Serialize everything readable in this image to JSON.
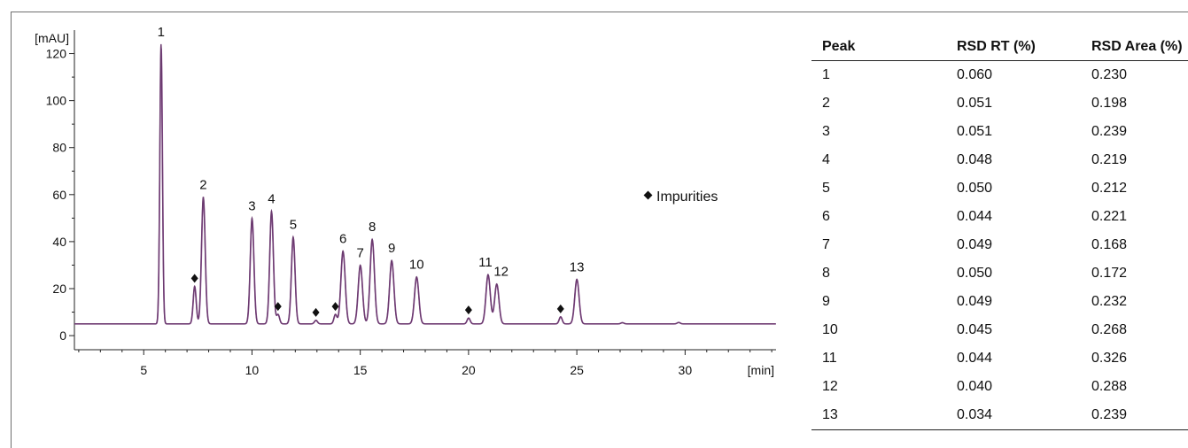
{
  "chart_data": {
    "type": "line",
    "xlabel": "[min]",
    "ylabel": "[mAU]",
    "xlim": [
      1.8,
      34.2
    ],
    "ylim": [
      -6,
      130
    ],
    "x_ticks": [
      5,
      10,
      15,
      20,
      25,
      30
    ],
    "y_ticks": [
      0,
      20,
      40,
      60,
      80,
      100,
      120
    ],
    "grid": false,
    "baseline": 5,
    "colors": {
      "trace_main": "#6a3a6e",
      "trace_overlay": "#9a5ca0"
    },
    "peaks": [
      {
        "label": "1",
        "x": 5.8,
        "y": 124
      },
      {
        "label": "2",
        "x": 7.75,
        "y": 59
      },
      {
        "label": "3",
        "x": 10.0,
        "y": 50
      },
      {
        "label": "4",
        "x": 10.9,
        "y": 53
      },
      {
        "label": "5",
        "x": 11.9,
        "y": 42
      },
      {
        "label": "6",
        "x": 14.2,
        "y": 36
      },
      {
        "label": "7",
        "x": 15.0,
        "y": 30
      },
      {
        "label": "8",
        "x": 15.55,
        "y": 41
      },
      {
        "label": "9",
        "x": 16.45,
        "y": 32
      },
      {
        "label": "10",
        "x": 17.6,
        "y": 25
      },
      {
        "label": "11",
        "x": 20.9,
        "y": 26
      },
      {
        "label": "12",
        "x": 21.3,
        "y": 22
      },
      {
        "label": "13",
        "x": 25.0,
        "y": 24
      }
    ],
    "impurities": [
      {
        "x": 7.35,
        "y": 21
      },
      {
        "x": 11.2,
        "y": 9
      },
      {
        "x": 12.95,
        "y": 6.5
      },
      {
        "x": 13.85,
        "y": 9
      },
      {
        "x": 20.0,
        "y": 7.5
      },
      {
        "x": 24.25,
        "y": 8
      },
      {
        "x": 29.7,
        "y": 5.6
      },
      {
        "x": 27.1,
        "y": 5.5
      }
    ],
    "legend": {
      "label": "Impurities",
      "placement": "right"
    }
  },
  "table": {
    "headers": [
      "Peak",
      "RSD RT (%)",
      "RSD Area (%)"
    ],
    "rows": [
      [
        "1",
        "0.060",
        "0.230"
      ],
      [
        "2",
        "0.051",
        "0.198"
      ],
      [
        "3",
        "0.051",
        "0.239"
      ],
      [
        "4",
        "0.048",
        "0.219"
      ],
      [
        "5",
        "0.050",
        "0.212"
      ],
      [
        "6",
        "0.044",
        "0.221"
      ],
      [
        "7",
        "0.049",
        "0.168"
      ],
      [
        "8",
        "0.050",
        "0.172"
      ],
      [
        "9",
        "0.049",
        "0.232"
      ],
      [
        "10",
        "0.045",
        "0.268"
      ],
      [
        "11",
        "0.044",
        "0.326"
      ],
      [
        "12",
        "0.040",
        "0.288"
      ],
      [
        "13",
        "0.034",
        "0.239"
      ]
    ]
  }
}
